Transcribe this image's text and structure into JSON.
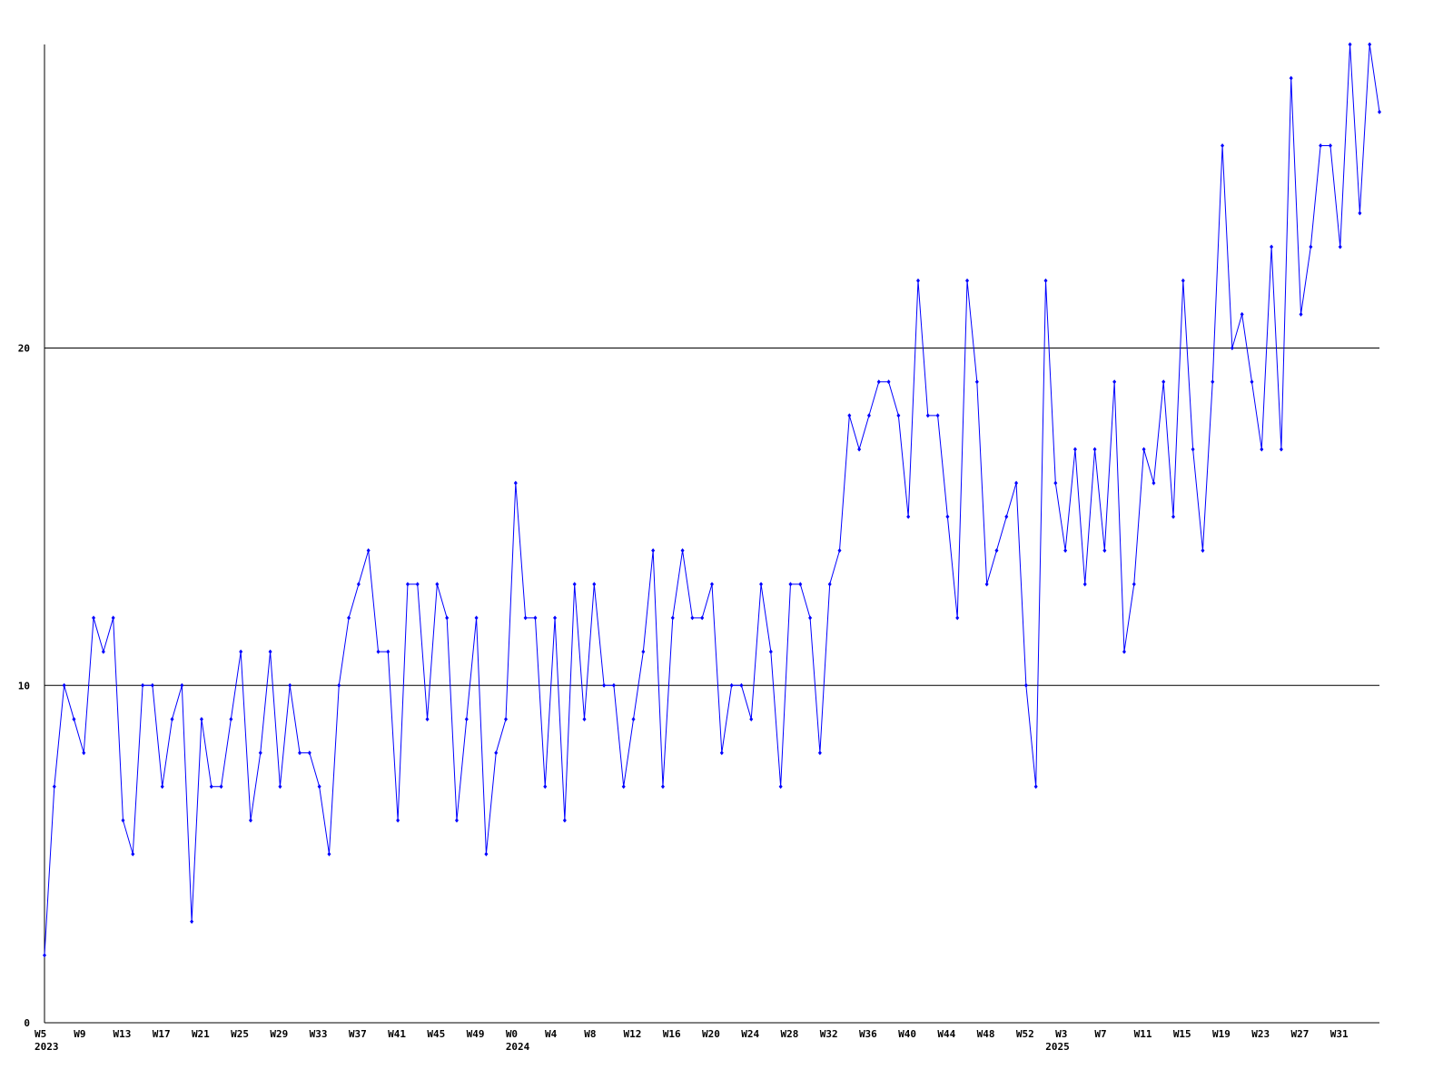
{
  "chart_data": {
    "type": "line",
    "categories": [
      "W5",
      null,
      null,
      null,
      "W9",
      null,
      null,
      null,
      "W13",
      null,
      null,
      null,
      "W17",
      null,
      null,
      null,
      "W21",
      null,
      null,
      null,
      "W25",
      null,
      null,
      null,
      "W29",
      null,
      null,
      null,
      "W33",
      null,
      null,
      null,
      "W37",
      null,
      null,
      null,
      "W41",
      null,
      null,
      null,
      "W45",
      null,
      null,
      null,
      "W49",
      null,
      null,
      null,
      "W0",
      null,
      null,
      null,
      "W4",
      null,
      null,
      null,
      "W8",
      null,
      null,
      null,
      "W12",
      null,
      null,
      null,
      "W16",
      null,
      null,
      null,
      "W20",
      null,
      null,
      null,
      "W24",
      null,
      null,
      null,
      "W28",
      null,
      null,
      null,
      "W32",
      null,
      null,
      null,
      "W36",
      null,
      null,
      null,
      "W40",
      null,
      null,
      null,
      "W44",
      null,
      null,
      null,
      "W48",
      null,
      null,
      null,
      "W52",
      null,
      null,
      null,
      "W3",
      null,
      null,
      null,
      "W7",
      null,
      null,
      null,
      "W11",
      null,
      null,
      null,
      "W15",
      null,
      null,
      null,
      "W19",
      null,
      null,
      null,
      "W23",
      null,
      null,
      null,
      "W27",
      null,
      null,
      null,
      "W31",
      null,
      null,
      null,
      null
    ],
    "category_groups": [
      "2023",
      null,
      null,
      null,
      null,
      null,
      null,
      null,
      null,
      null,
      null,
      null,
      null,
      null,
      null,
      null,
      null,
      null,
      null,
      null,
      null,
      null,
      null,
      null,
      null,
      null,
      null,
      null,
      null,
      null,
      null,
      null,
      null,
      null,
      null,
      null,
      null,
      null,
      null,
      null,
      null,
      null,
      null,
      null,
      null,
      null,
      null,
      null,
      "2024",
      null,
      null,
      null,
      null,
      null,
      null,
      null,
      null,
      null,
      null,
      null,
      null,
      null,
      null,
      null,
      null,
      null,
      null,
      null,
      null,
      null,
      null,
      null,
      null,
      null,
      null,
      null,
      null,
      null,
      null,
      null,
      null,
      null,
      null,
      null,
      null,
      null,
      null,
      null,
      null,
      null,
      null,
      null,
      null,
      null,
      null,
      null,
      null,
      null,
      null,
      null,
      null,
      null,
      null,
      "2025",
      null,
      null,
      null,
      null,
      null,
      null,
      null,
      null,
      null,
      null,
      null,
      null,
      null,
      null,
      null,
      null,
      null,
      null,
      null,
      null,
      null,
      null,
      null,
      null,
      null,
      null,
      null,
      null,
      null,
      null,
      null,
      null,
      null,
      null,
      null
    ],
    "series": [
      {
        "color": "#0000ff",
        "values": [
          2,
          7,
          10,
          9,
          8,
          12,
          11,
          12,
          6,
          5,
          10,
          10,
          7,
          9,
          10,
          3,
          9,
          7,
          7,
          9,
          11,
          6,
          8,
          11,
          7,
          10,
          8,
          8,
          7,
          5,
          10,
          12,
          13,
          14,
          11,
          11,
          6,
          13,
          13,
          9,
          13,
          12,
          6,
          9,
          12,
          5,
          8,
          9,
          16,
          12,
          12,
          7,
          12,
          6,
          13,
          9,
          13,
          10,
          10,
          7,
          9,
          11,
          14,
          7,
          12,
          14,
          12,
          12,
          13,
          8,
          10,
          10,
          9,
          13,
          11,
          7,
          13,
          13,
          12,
          8,
          13,
          14,
          18,
          17,
          18,
          19,
          19,
          18,
          15,
          22,
          18,
          18,
          15,
          12,
          22,
          19,
          13,
          14,
          15,
          16,
          10,
          7,
          22,
          16,
          14,
          17,
          13,
          17,
          14,
          19,
          11,
          13,
          17,
          16,
          19,
          15,
          22,
          17,
          14,
          19,
          26,
          20,
          21,
          19,
          17,
          23,
          17,
          28,
          21,
          23,
          26,
          26,
          23,
          29,
          24,
          29,
          27
        ]
      }
    ],
    "ylim": [
      0,
      29
    ],
    "yticks": [
      0,
      10,
      20
    ],
    "grid": true
  }
}
